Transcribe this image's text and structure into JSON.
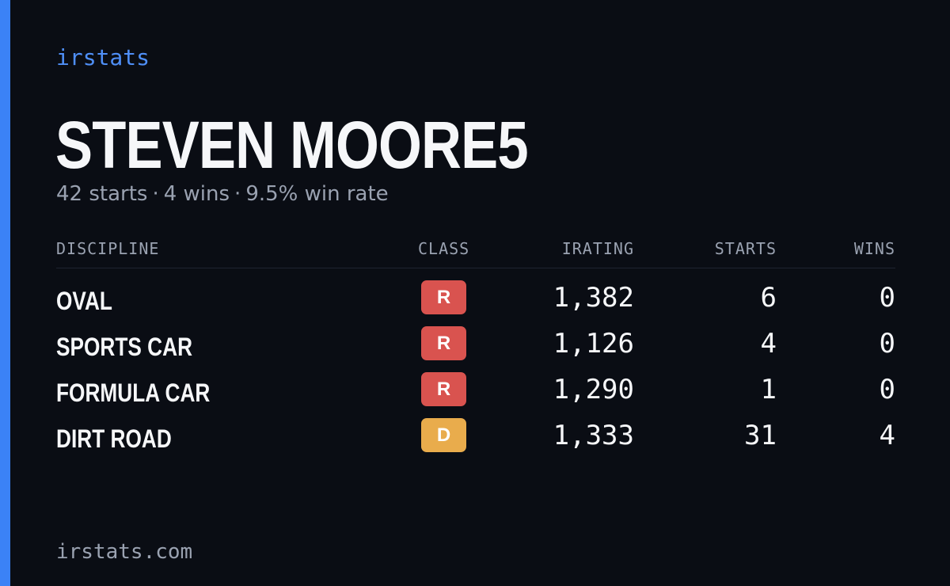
{
  "brand": "irstats",
  "player": {
    "name": "STEVEN MOORE5",
    "summary": {
      "starts": "42 starts",
      "wins": "4 wins",
      "win_rate": "9.5% win rate",
      "separator": "·"
    }
  },
  "table": {
    "headers": {
      "discipline": "DISCIPLINE",
      "class": "CLASS",
      "irating": "IRATING",
      "starts": "STARTS",
      "wins": "WINS"
    },
    "rows": [
      {
        "discipline": "OVAL",
        "class": "R",
        "class_color": "#d9534f",
        "irating": "1,382",
        "starts": "6",
        "wins": "0"
      },
      {
        "discipline": "SPORTS CAR",
        "class": "R",
        "class_color": "#d9534f",
        "irating": "1,126",
        "starts": "4",
        "wins": "0"
      },
      {
        "discipline": "FORMULA CAR",
        "class": "R",
        "class_color": "#d9534f",
        "irating": "1,290",
        "starts": "1",
        "wins": "0"
      },
      {
        "discipline": "DIRT ROAD",
        "class": "D",
        "class_color": "#e9ac4c",
        "irating": "1,333",
        "starts": "31",
        "wins": "4"
      }
    ]
  },
  "footer": "irstats.com",
  "colors": {
    "background": "#0a0d14",
    "accent": "#3b82f6",
    "brand_text": "#4f8ff7",
    "muted_text": "#9aa2b1"
  }
}
